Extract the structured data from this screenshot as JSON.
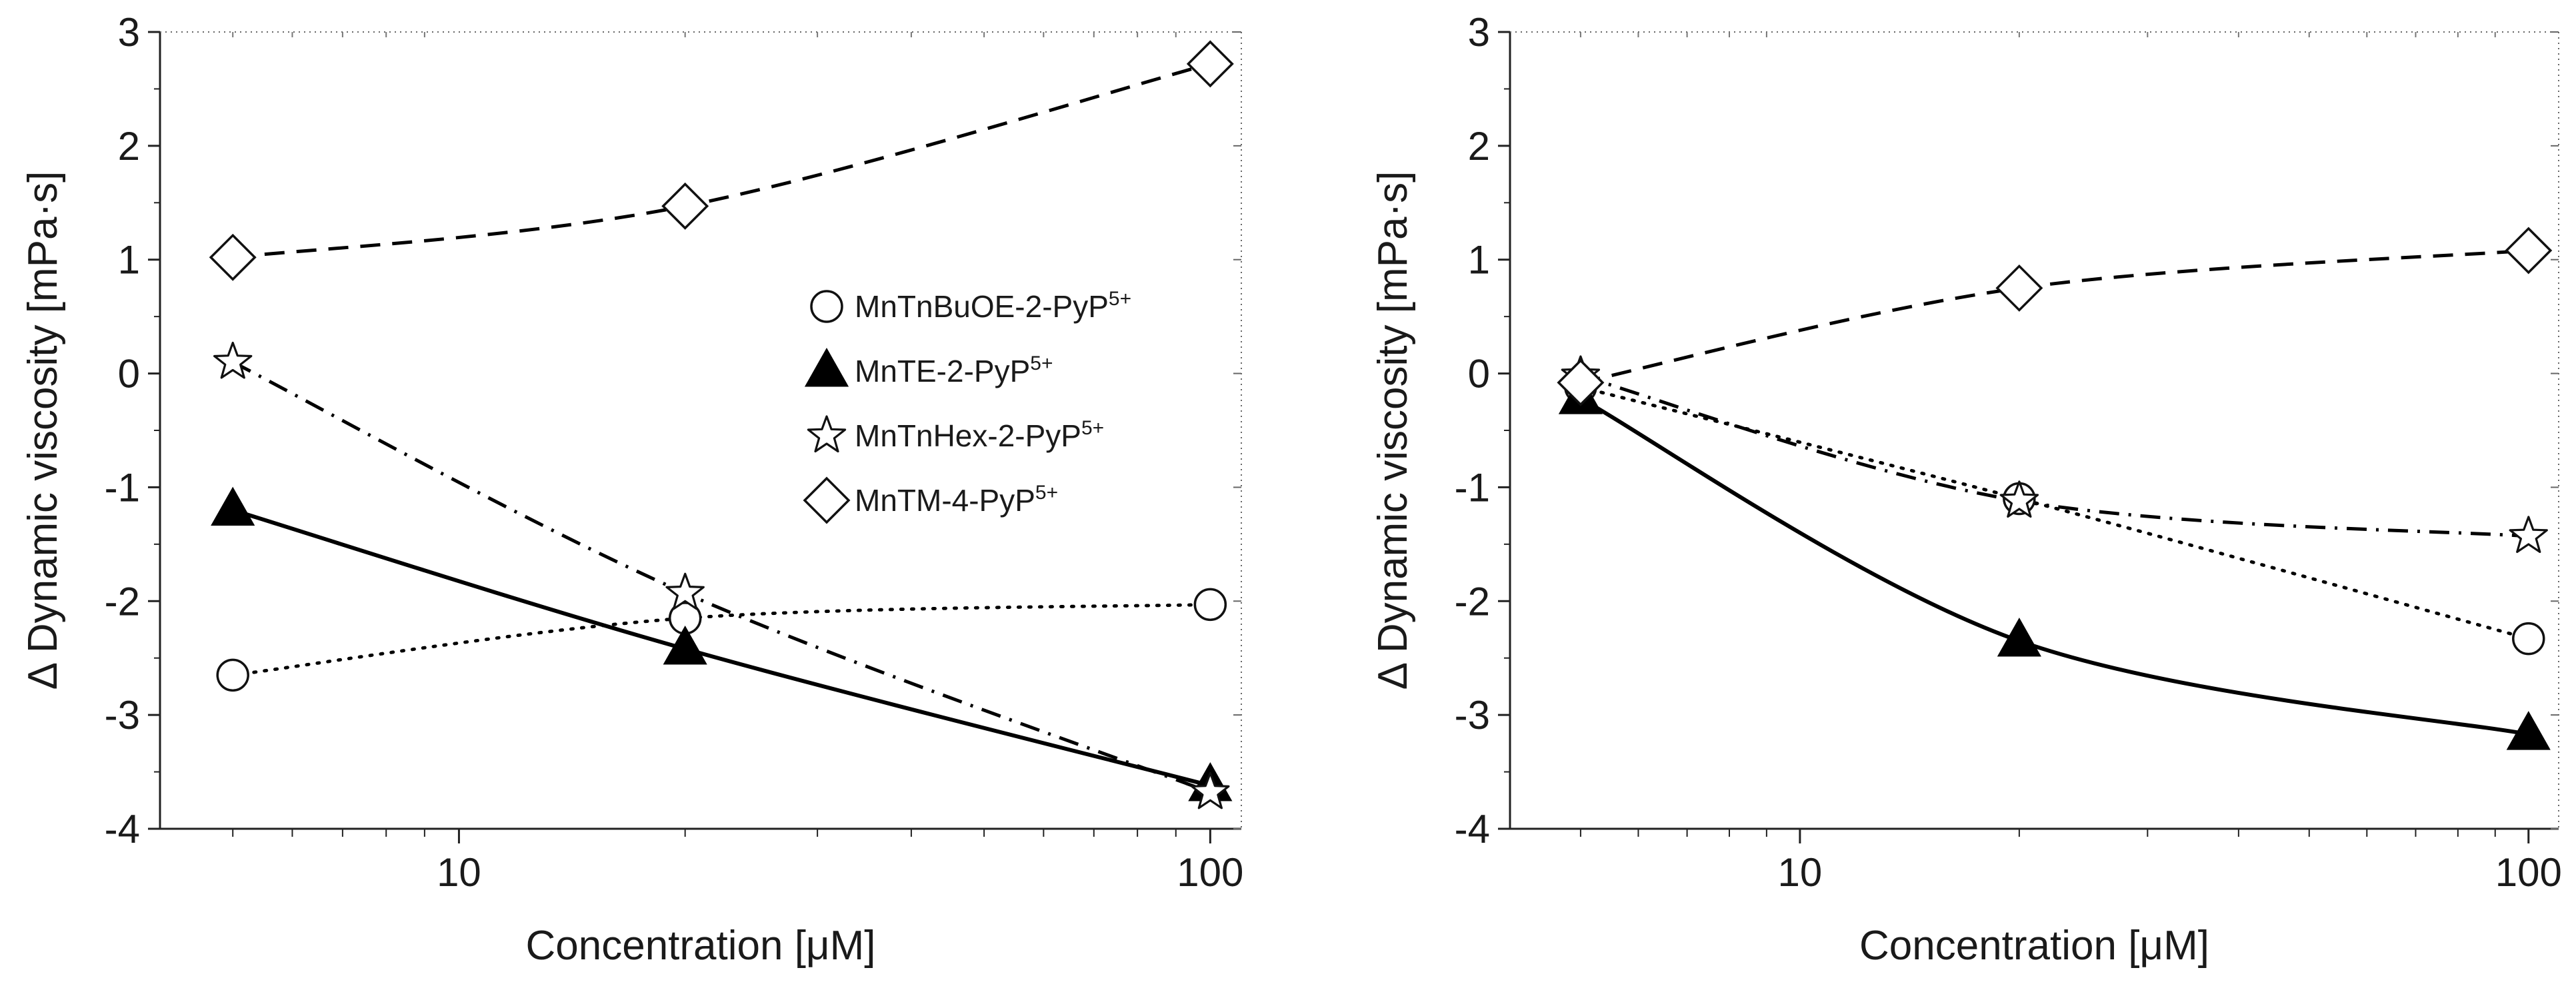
{
  "chart_data": [
    {
      "type": "line",
      "xscale": "log",
      "xlabel": "Concentration [μM]",
      "ylabel": "Δ Dynamic viscosity [mPa·s]",
      "xlim": [
        4,
        110
      ],
      "ylim": [
        -4,
        3
      ],
      "xticks": [
        {
          "value": 10,
          "label": "10"
        },
        {
          "value": 100,
          "label": "100"
        }
      ],
      "yticks": [
        {
          "value": 3,
          "label": "3"
        },
        {
          "value": 2,
          "label": "2"
        },
        {
          "value": 1,
          "label": "1"
        },
        {
          "value": 0,
          "label": "0"
        },
        {
          "value": -1,
          "label": "-1"
        },
        {
          "value": -2,
          "label": "-2"
        },
        {
          "value": -3,
          "label": "-3"
        },
        {
          "value": -4,
          "label": "-4"
        }
      ],
      "legend": {
        "position": "center-right",
        "entries": [
          {
            "series": 0,
            "label": "MnTnBuOE-2-PyP",
            "sup": "5+"
          },
          {
            "series": 1,
            "label": "MnTE-2-PyP",
            "sup": "5+"
          },
          {
            "series": 2,
            "label": "MnTnHex-2-PyP",
            "sup": "5+"
          },
          {
            "series": 3,
            "label": "MnTM-4-PyP",
            "sup": "5+"
          }
        ]
      },
      "series": [
        {
          "name": "MnTnBuOE-2-PyP5+",
          "marker": "circle",
          "line": "dotted",
          "x": [
            5,
            20,
            100
          ],
          "y": [
            -2.65,
            -2.15,
            -2.03
          ]
        },
        {
          "name": "MnTE-2-PyP5+",
          "marker": "triangle",
          "line": "solid",
          "x": [
            5,
            20,
            100
          ],
          "y": [
            -1.2,
            -2.42,
            -3.62
          ]
        },
        {
          "name": "MnTnHex-2-PyP5+",
          "marker": "star",
          "line": "dashdot",
          "x": [
            5,
            20,
            100
          ],
          "y": [
            0.1,
            -1.93,
            -3.68
          ]
        },
        {
          "name": "MnTM-4-PyP5+",
          "marker": "diamond",
          "line": "dashed",
          "x": [
            5,
            20,
            100
          ],
          "y": [
            1.02,
            1.47,
            2.72
          ]
        }
      ]
    },
    {
      "type": "line",
      "xscale": "log",
      "xlabel": "Concentration [μM]",
      "ylabel": "Δ Dynamic viscosity [mPa·s]",
      "xlim": [
        4,
        110
      ],
      "ylim": [
        -4,
        3
      ],
      "xticks": [
        {
          "value": 10,
          "label": "10"
        },
        {
          "value": 100,
          "label": "100"
        }
      ],
      "yticks": [
        {
          "value": 3,
          "label": "3"
        },
        {
          "value": 2,
          "label": "2"
        },
        {
          "value": 1,
          "label": "1"
        },
        {
          "value": 0,
          "label": "0"
        },
        {
          "value": -1,
          "label": "-1"
        },
        {
          "value": -2,
          "label": "-2"
        },
        {
          "value": -3,
          "label": "-3"
        },
        {
          "value": -4,
          "label": "-4"
        }
      ],
      "series": [
        {
          "name": "MnTnBuOE-2-PyP5+",
          "marker": "circle",
          "line": "dotted",
          "x": [
            5,
            20,
            100
          ],
          "y": [
            -0.12,
            -1.1,
            -2.33
          ]
        },
        {
          "name": "MnTE-2-PyP5+",
          "marker": "triangle",
          "line": "solid",
          "x": [
            5,
            20,
            100
          ],
          "y": [
            -0.22,
            -2.35,
            -3.17
          ]
        },
        {
          "name": "MnTnHex-2-PyP5+",
          "marker": "star",
          "line": "dashdot",
          "x": [
            5,
            20,
            100
          ],
          "y": [
            -0.02,
            -1.12,
            -1.43
          ]
        },
        {
          "name": "MnTM-4-PyP5+",
          "marker": "diamond",
          "line": "dashed",
          "x": [
            5,
            20,
            100
          ],
          "y": [
            -0.08,
            0.75,
            1.08
          ]
        }
      ]
    }
  ]
}
